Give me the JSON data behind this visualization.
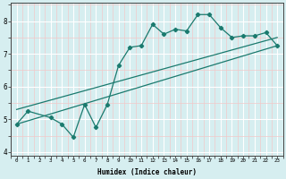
{
  "xlabel": "Humidex (Indice chaleur)",
  "background_color": "#d6eef0",
  "grid_color_major": "#ffffff",
  "grid_color_minor": "#f2c8c8",
  "line_color": "#1a7a6e",
  "xlim": [
    -0.5,
    23.5
  ],
  "ylim": [
    3.9,
    8.55
  ],
  "xticks": [
    0,
    1,
    2,
    3,
    4,
    5,
    6,
    7,
    8,
    9,
    10,
    11,
    12,
    13,
    14,
    15,
    16,
    17,
    18,
    19,
    20,
    21,
    22,
    23
  ],
  "yticks": [
    4,
    5,
    6,
    7,
    8
  ],
  "line1_x": [
    0,
    1,
    3,
    4,
    5,
    6,
    7,
    8,
    9,
    10,
    11,
    12,
    13,
    14,
    15,
    16,
    17,
    18,
    19,
    20,
    21,
    22,
    23
  ],
  "line1_y": [
    4.85,
    5.25,
    5.05,
    4.85,
    4.45,
    5.45,
    4.75,
    5.45,
    6.65,
    7.2,
    7.25,
    7.9,
    7.6,
    7.75,
    7.7,
    8.2,
    8.2,
    7.8,
    7.5,
    7.55,
    7.55,
    7.65,
    7.25
  ],
  "line2_x": [
    0,
    23
  ],
  "line2_y": [
    4.85,
    7.25
  ],
  "line3_x": [
    0,
    23
  ],
  "line3_y": [
    5.3,
    7.5
  ]
}
